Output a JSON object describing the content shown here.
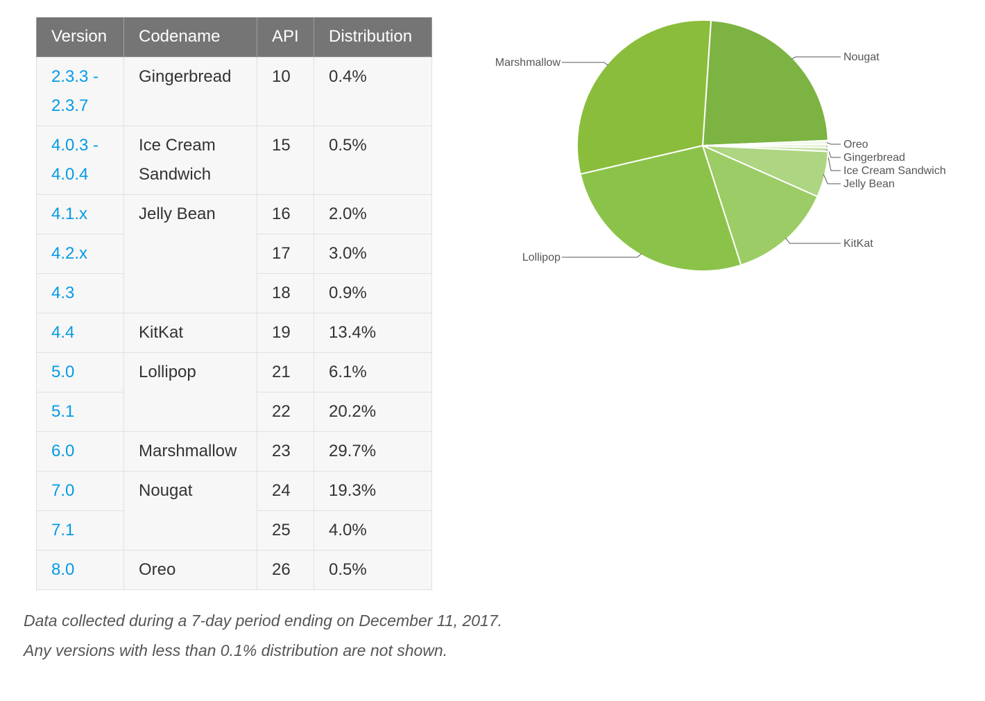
{
  "table": {
    "headers": {
      "version": "Version",
      "codename": "Codename",
      "api": "API",
      "distribution": "Distribution"
    },
    "rows": [
      {
        "version": "2.3.3 - 2.3.7",
        "codename": "Gingerbread",
        "api": "10",
        "distribution": "0.4%"
      },
      {
        "version": "4.0.3 - 4.0.4",
        "codename": "Ice Cream Sandwich",
        "api": "15",
        "distribution": "0.5%"
      },
      {
        "version": "4.1.x",
        "codename": "Jelly Bean",
        "api": "16",
        "distribution": "2.0%"
      },
      {
        "version": "4.2.x",
        "codename": "",
        "api": "17",
        "distribution": "3.0%"
      },
      {
        "version": "4.3",
        "codename": "",
        "api": "18",
        "distribution": "0.9%"
      },
      {
        "version": "4.4",
        "codename": "KitKat",
        "api": "19",
        "distribution": "13.4%"
      },
      {
        "version": "5.0",
        "codename": "Lollipop",
        "api": "21",
        "distribution": "6.1%"
      },
      {
        "version": "5.1",
        "codename": "",
        "api": "22",
        "distribution": "20.2%"
      },
      {
        "version": "6.0",
        "codename": "Marshmallow",
        "api": "23",
        "distribution": "29.7%"
      },
      {
        "version": "7.0",
        "codename": "Nougat",
        "api": "24",
        "distribution": "19.3%"
      },
      {
        "version": "7.1",
        "codename": "",
        "api": "25",
        "distribution": "4.0%"
      },
      {
        "version": "8.0",
        "codename": "Oreo",
        "api": "26",
        "distribution": "0.5%"
      }
    ]
  },
  "notes": {
    "line1": "Data collected during a 7-day period ending on December 11, 2017.",
    "line2": "Any versions with less than 0.1% distribution are not shown."
  },
  "chart_data": {
    "type": "pie",
    "slices": [
      {
        "label": "Nougat",
        "value": 23.3,
        "color": "#7cb342"
      },
      {
        "label": "Oreo",
        "value": 0.5,
        "color": "#f1f8e9"
      },
      {
        "label": "Gingerbread",
        "value": 0.4,
        "color": "#dcedc8"
      },
      {
        "label": "Ice Cream Sandwich",
        "value": 0.5,
        "color": "#c5e1a5"
      },
      {
        "label": "Jelly Bean",
        "value": 5.9,
        "color": "#aed581"
      },
      {
        "label": "KitKat",
        "value": 13.4,
        "color": "#9ccc65"
      },
      {
        "label": "Lollipop",
        "value": 26.3,
        "color": "#8bc34a"
      },
      {
        "label": "Marshmallow",
        "value": 29.7,
        "color": "#8abd3b"
      }
    ]
  }
}
